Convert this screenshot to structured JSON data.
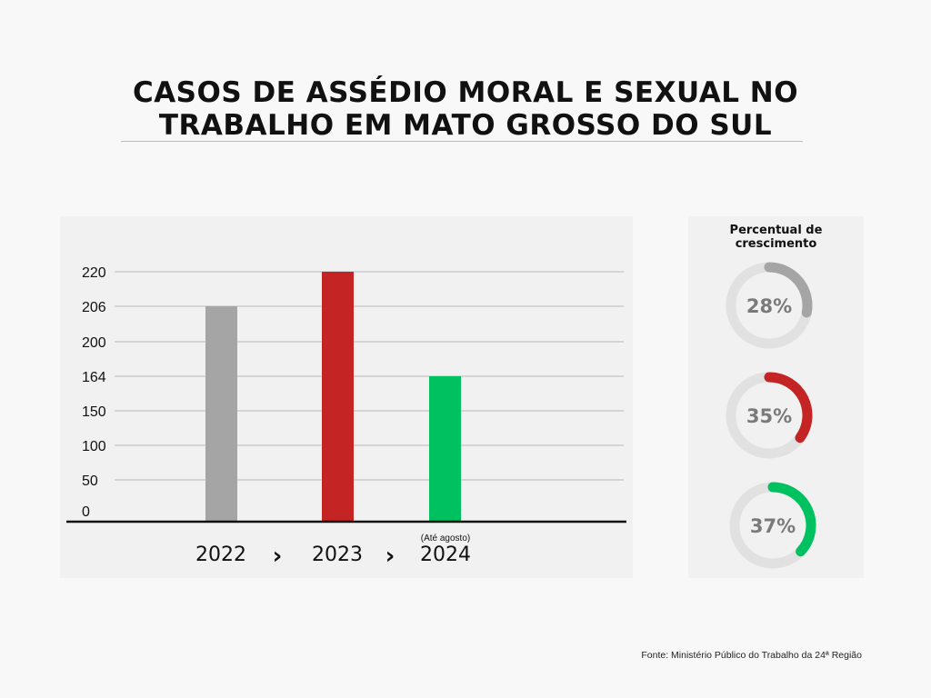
{
  "title_line1": "CASOS DE ASSÉDIO MORAL E SEXUAL NO",
  "title_line2": "TRABALHO EM MATO GROSSO DO SUL",
  "chart_data": {
    "type": "bar",
    "categories": [
      "2022",
      "2023",
      "2024"
    ],
    "values": [
      206,
      220,
      164
    ],
    "colors": [
      "#a5a5a5",
      "#c42424",
      "#00c160"
    ],
    "category_note": {
      "2024": "(Até agosto)"
    },
    "y_tick_labels": [
      "0",
      "50",
      "100",
      "150",
      "164",
      "200",
      "206",
      "220"
    ],
    "separator": "›",
    "grid": true
  },
  "growth": {
    "title_line1": "Percentual de",
    "title_line2": "crescimento",
    "items": [
      {
        "label": "28%",
        "percent": 28,
        "color": "#a5a5a5"
      },
      {
        "label": "35%",
        "percent": 35,
        "color": "#c42424"
      },
      {
        "label": "37%",
        "percent": 37,
        "color": "#00c160"
      }
    ]
  },
  "source": "Fonte: Ministério Público do Trabalho da 24ª Região"
}
